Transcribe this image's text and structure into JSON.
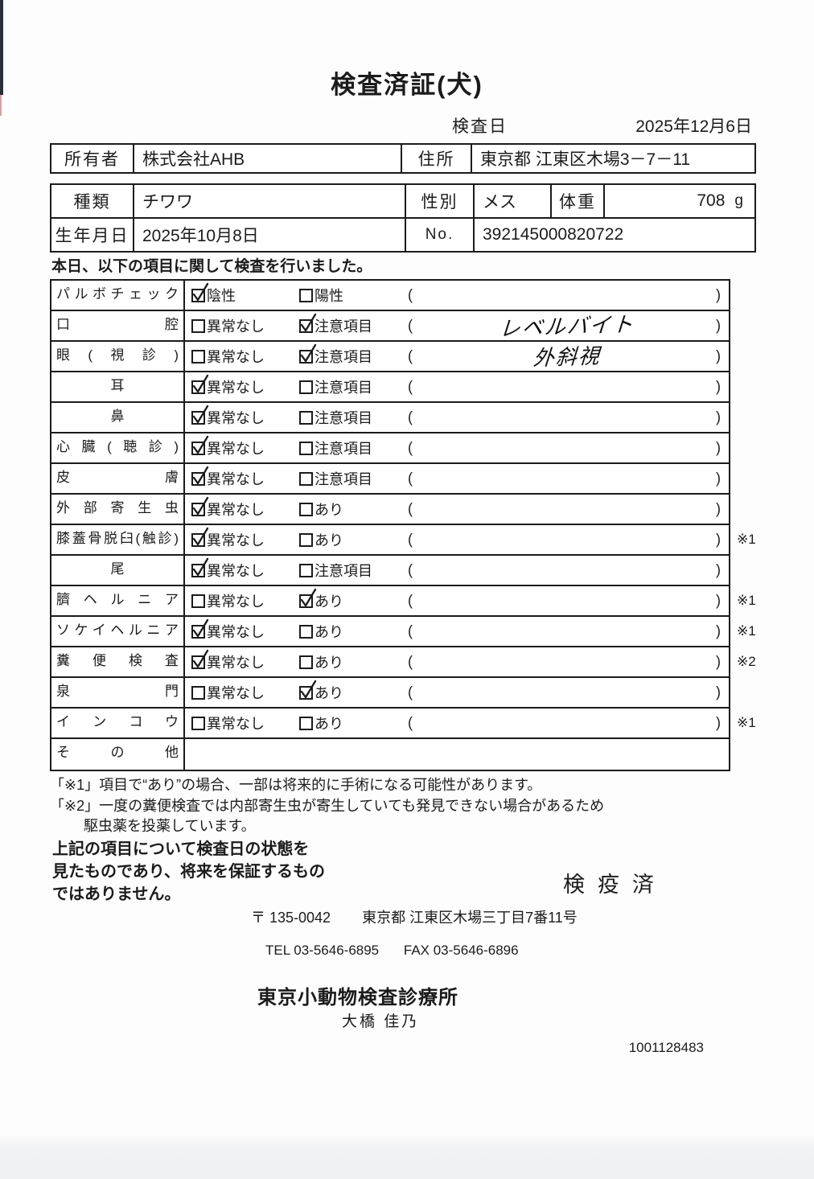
{
  "title": "検査済証(犬)",
  "header": {
    "date_label": "検査日",
    "date_value": "2025年12月6日"
  },
  "owner_table": {
    "owner_label": "所有者",
    "owner": "株式会社AHB",
    "address_label": "住所",
    "address": "東京都 江東区木場3－7－11"
  },
  "animal_table": {
    "breed_label": "種類",
    "breed": "チワワ",
    "sex_label": "性別",
    "sex": "メス",
    "weight_label": "体重",
    "weight": "708",
    "weight_unit": "g",
    "birth_label": "生年月日",
    "birth": "2025年10月8日",
    "no_label": "No.",
    "no": "392145000820722"
  },
  "checklist": {
    "intro": "本日、以下の項目に関して検査を行いました。",
    "paren_open": "(",
    "paren_close": ")",
    "rows": [
      {
        "label": "パルボチェック",
        "options": [
          {
            "text": "陰性",
            "checked": true
          },
          {
            "text": "陽性",
            "checked": false
          }
        ],
        "note": "",
        "marker": ""
      },
      {
        "label": "口腔",
        "options": [
          {
            "text": "異常なし",
            "checked": false
          },
          {
            "text": "注意項目",
            "checked": true
          }
        ],
        "note": "レベルバイト",
        "marker": ""
      },
      {
        "label": "眼(視診)",
        "options": [
          {
            "text": "異常なし",
            "checked": false
          },
          {
            "text": "注意項目",
            "checked": true
          }
        ],
        "note": "外斜視",
        "marker": ""
      },
      {
        "label": "耳",
        "center": true,
        "options": [
          {
            "text": "異常なし",
            "checked": true
          },
          {
            "text": "注意項目",
            "checked": false
          }
        ],
        "note": "",
        "marker": ""
      },
      {
        "label": "鼻",
        "center": true,
        "options": [
          {
            "text": "異常なし",
            "checked": true
          },
          {
            "text": "注意項目",
            "checked": false
          }
        ],
        "note": "",
        "marker": ""
      },
      {
        "label": "心臓(聴診)",
        "options": [
          {
            "text": "異常なし",
            "checked": true
          },
          {
            "text": "注意項目",
            "checked": false
          }
        ],
        "note": "",
        "marker": ""
      },
      {
        "label": "皮膚",
        "options": [
          {
            "text": "異常なし",
            "checked": true
          },
          {
            "text": "注意項目",
            "checked": false
          }
        ],
        "note": "",
        "marker": ""
      },
      {
        "label": "外部寄生虫",
        "options": [
          {
            "text": "異常なし",
            "checked": true
          },
          {
            "text": "あり",
            "checked": false
          }
        ],
        "note": "",
        "marker": ""
      },
      {
        "label": "膝蓋骨脱臼(触診)",
        "options": [
          {
            "text": "異常なし",
            "checked": true
          },
          {
            "text": "あり",
            "checked": false
          }
        ],
        "note": "",
        "marker": "※1"
      },
      {
        "label": "尾",
        "center": true,
        "options": [
          {
            "text": "異常なし",
            "checked": true
          },
          {
            "text": "注意項目",
            "checked": false
          }
        ],
        "note": "",
        "marker": ""
      },
      {
        "label": "臍ヘルニア",
        "options": [
          {
            "text": "異常なし",
            "checked": false
          },
          {
            "text": "あり",
            "checked": true
          }
        ],
        "note": "",
        "marker": "※1"
      },
      {
        "label": "ソケイヘルニア",
        "options": [
          {
            "text": "異常なし",
            "checked": true
          },
          {
            "text": "あり",
            "checked": false
          }
        ],
        "note": "",
        "marker": "※1"
      },
      {
        "label": "糞便検査",
        "options": [
          {
            "text": "異常なし",
            "checked": true
          },
          {
            "text": "あり",
            "checked": false
          }
        ],
        "note": "",
        "marker": "※2"
      },
      {
        "label": "泉門",
        "options": [
          {
            "text": "異常なし",
            "checked": false
          },
          {
            "text": "あり",
            "checked": true
          }
        ],
        "note": "",
        "marker": ""
      },
      {
        "label": "インコウ",
        "options": [
          {
            "text": "異常なし",
            "checked": false
          },
          {
            "text": "あり",
            "checked": false
          }
        ],
        "note": "",
        "marker": "※1"
      },
      {
        "label": "その他",
        "paren": false,
        "options": [],
        "note": "",
        "marker": ""
      }
    ]
  },
  "footnotes": {
    "note1": "「※1」項目で“あり”の場合、一部は将来的に手術になる可能性があります。",
    "note2_line1": "「※2」一度の糞便検査では内部寄生虫が寄生していても発見できない場合があるため",
    "note2_line2": "駆虫薬を投薬しています。"
  },
  "disclaimer": {
    "line1": "上記の項目について検査日の状態を",
    "line2": "見たものであり、将来を保証するもの",
    "line3": "ではありません。"
  },
  "stamp_text": "検疫済",
  "footer": {
    "postal": "〒 135-0042",
    "address": "東京都 江東区木場三丁目7番11号",
    "tel": "TEL 03-5646-6895",
    "fax": "FAX 03-5646-6896",
    "clinic": "東京小動物検査診療所",
    "inspector": "大橋 佳乃",
    "serial": "1001128483"
  }
}
